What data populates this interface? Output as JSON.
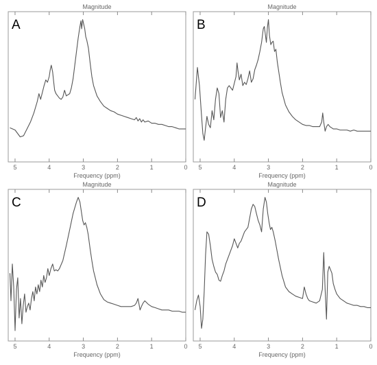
{
  "chart_data": [
    {
      "type": "line",
      "panel_label": "A",
      "title": "Magnitude",
      "xlabel": "Frequency (ppm)",
      "ylabel": "",
      "xlim": [
        5.2,
        0
      ],
      "xticks": [
        "5",
        "4",
        "3",
        "2",
        "1",
        "0"
      ],
      "xtick_values": [
        5,
        4,
        3,
        2,
        1,
        0
      ],
      "grid": false,
      "series": [
        {
          "x": [
            5.15,
            5.0,
            4.85,
            4.75,
            4.65,
            4.55,
            4.45,
            4.35,
            4.3,
            4.25,
            4.2,
            4.15,
            4.1,
            4.05,
            4.0,
            3.97,
            3.94,
            3.9,
            3.87,
            3.84,
            3.8,
            3.75,
            3.7,
            3.65,
            3.6,
            3.55,
            3.5,
            3.45,
            3.4,
            3.35,
            3.3,
            3.25,
            3.2,
            3.15,
            3.1,
            3.07,
            3.05,
            3.02,
            2.99,
            2.96,
            2.93,
            2.9,
            2.85,
            2.8,
            2.75,
            2.7,
            2.6,
            2.5,
            2.4,
            2.3,
            2.2,
            2.1,
            2.0,
            1.9,
            1.8,
            1.7,
            1.6,
            1.5,
            1.45,
            1.4,
            1.35,
            1.3,
            1.25,
            1.2,
            1.1,
            1.0,
            0.9,
            0.8,
            0.7,
            0.6,
            0.5,
            0.4,
            0.3,
            0.2,
            0.1,
            0.0
          ],
          "y": [
            0.05,
            0.03,
            -0.03,
            -0.02,
            0.04,
            0.1,
            0.18,
            0.28,
            0.35,
            0.3,
            0.36,
            0.42,
            0.47,
            0.45,
            0.5,
            0.56,
            0.6,
            0.54,
            0.46,
            0.38,
            0.35,
            0.33,
            0.31,
            0.3,
            0.32,
            0.38,
            0.33,
            0.34,
            0.35,
            0.4,
            0.48,
            0.6,
            0.72,
            0.84,
            0.94,
            0.99,
            0.92,
            1.0,
            0.96,
            0.92,
            0.85,
            0.82,
            0.75,
            0.62,
            0.5,
            0.42,
            0.33,
            0.28,
            0.24,
            0.22,
            0.2,
            0.19,
            0.17,
            0.16,
            0.15,
            0.14,
            0.13,
            0.12,
            0.14,
            0.11,
            0.13,
            0.1,
            0.12,
            0.1,
            0.11,
            0.09,
            0.09,
            0.08,
            0.08,
            0.07,
            0.06,
            0.06,
            0.05,
            0.04,
            0.04,
            0.04
          ]
        }
      ]
    },
    {
      "type": "line",
      "panel_label": "B",
      "title": "Magnitude",
      "xlabel": "Frequency (ppm)",
      "ylabel": "",
      "xlim": [
        5.2,
        0
      ],
      "xticks": [
        "5",
        "4",
        "3",
        "2",
        "1",
        "0"
      ],
      "xtick_values": [
        5,
        4,
        3,
        2,
        1,
        0
      ],
      "grid": false,
      "series": [
        {
          "x": [
            5.15,
            5.08,
            5.02,
            4.97,
            4.92,
            4.88,
            4.84,
            4.8,
            4.75,
            4.7,
            4.65,
            4.6,
            4.55,
            4.5,
            4.45,
            4.4,
            4.35,
            4.3,
            4.25,
            4.2,
            4.15,
            4.1,
            4.05,
            4.0,
            3.95,
            3.92,
            3.89,
            3.85,
            3.8,
            3.75,
            3.7,
            3.65,
            3.6,
            3.55,
            3.5,
            3.45,
            3.4,
            3.35,
            3.3,
            3.25,
            3.2,
            3.15,
            3.12,
            3.09,
            3.06,
            3.03,
            3.0,
            2.97,
            2.93,
            2.9,
            2.86,
            2.82,
            2.78,
            2.74,
            2.7,
            2.65,
            2.6,
            2.5,
            2.4,
            2.3,
            2.2,
            2.1,
            2.0,
            1.9,
            1.8,
            1.7,
            1.6,
            1.5,
            1.44,
            1.41,
            1.38,
            1.34,
            1.3,
            1.25,
            1.2,
            1.15,
            1.1,
            1.0,
            0.9,
            0.8,
            0.7,
            0.6,
            0.5,
            0.4,
            0.3,
            0.2,
            0.1,
            0.0
          ],
          "y": [
            0.3,
            0.58,
            0.42,
            0.2,
            0.0,
            -0.06,
            0.05,
            0.15,
            0.08,
            0.05,
            0.2,
            0.12,
            0.3,
            0.4,
            0.35,
            0.14,
            0.2,
            0.1,
            0.3,
            0.4,
            0.42,
            0.4,
            0.38,
            0.44,
            0.5,
            0.62,
            0.55,
            0.47,
            0.52,
            0.42,
            0.45,
            0.43,
            0.48,
            0.55,
            0.45,
            0.48,
            0.56,
            0.6,
            0.65,
            0.72,
            0.8,
            0.92,
            0.94,
            0.87,
            0.8,
            0.93,
            1.0,
            0.86,
            0.78,
            0.8,
            0.81,
            0.72,
            0.74,
            0.63,
            0.55,
            0.45,
            0.36,
            0.25,
            0.19,
            0.15,
            0.12,
            0.1,
            0.08,
            0.07,
            0.07,
            0.06,
            0.06,
            0.06,
            0.1,
            0.18,
            0.1,
            0.02,
            0.06,
            0.08,
            0.06,
            0.05,
            0.04,
            0.04,
            0.03,
            0.03,
            0.03,
            0.02,
            0.03,
            0.02,
            0.02,
            0.02,
            0.02,
            0.02
          ]
        }
      ]
    },
    {
      "type": "line",
      "panel_label": "C",
      "title": "Magnitude",
      "xlabel": "Frequency (ppm)",
      "ylabel": "",
      "xlim": [
        5.2,
        0
      ],
      "xticks": [
        "5",
        "4",
        "3",
        "2",
        "1",
        "0"
      ],
      "xtick_values": [
        5,
        4,
        3,
        2,
        1,
        0
      ],
      "grid": false,
      "series": [
        {
          "x": [
            5.15,
            5.12,
            5.08,
            5.04,
            5.0,
            4.96,
            4.92,
            4.88,
            4.84,
            4.8,
            4.76,
            4.72,
            4.68,
            4.64,
            4.6,
            4.56,
            4.52,
            4.48,
            4.44,
            4.4,
            4.36,
            4.32,
            4.28,
            4.24,
            4.2,
            4.16,
            4.12,
            4.08,
            4.04,
            4.0,
            3.95,
            3.9,
            3.85,
            3.8,
            3.75,
            3.7,
            3.6,
            3.5,
            3.4,
            3.3,
            3.2,
            3.15,
            3.1,
            3.06,
            3.02,
            2.98,
            2.94,
            2.9,
            2.86,
            2.8,
            2.75,
            2.7,
            2.65,
            2.6,
            2.5,
            2.4,
            2.3,
            2.2,
            2.1,
            2.0,
            1.9,
            1.8,
            1.7,
            1.6,
            1.5,
            1.45,
            1.4,
            1.37,
            1.34,
            1.3,
            1.25,
            1.2,
            1.1,
            1.0,
            0.9,
            0.8,
            0.7,
            0.6,
            0.5,
            0.4,
            0.3,
            0.2,
            0.1,
            0.0
          ],
          "y": [
            0.34,
            0.1,
            0.42,
            0.22,
            -0.16,
            0.2,
            0.3,
            -0.05,
            0.12,
            -0.1,
            0.06,
            0.16,
            0.0,
            0.05,
            0.08,
            0.02,
            0.12,
            0.18,
            0.1,
            0.22,
            0.16,
            0.24,
            0.18,
            0.28,
            0.22,
            0.32,
            0.26,
            0.3,
            0.38,
            0.32,
            0.38,
            0.42,
            0.36,
            0.37,
            0.36,
            0.38,
            0.45,
            0.58,
            0.72,
            0.86,
            0.96,
            1.0,
            0.96,
            0.88,
            0.8,
            0.76,
            0.78,
            0.74,
            0.68,
            0.55,
            0.45,
            0.36,
            0.3,
            0.24,
            0.16,
            0.11,
            0.09,
            0.08,
            0.07,
            0.06,
            0.05,
            0.05,
            0.05,
            0.05,
            0.06,
            0.08,
            0.12,
            0.07,
            0.02,
            0.05,
            0.08,
            0.1,
            0.07,
            0.05,
            0.04,
            0.03,
            0.02,
            0.02,
            0.02,
            0.01,
            0.01,
            0.01,
            0.0,
            0.0
          ]
        }
      ]
    },
    {
      "type": "line",
      "panel_label": "D",
      "title": "Magnitude",
      "xlabel": "Frequency (ppm)",
      "ylabel": "",
      "xlim": [
        5.2,
        0
      ],
      "xticks": [
        "5",
        "4",
        "3",
        "2",
        "1",
        "0"
      ],
      "xtick_values": [
        5,
        4,
        3,
        2,
        1,
        0
      ],
      "grid": false,
      "series": [
        {
          "x": [
            5.15,
            5.1,
            5.05,
            5.0,
            4.96,
            4.92,
            4.88,
            4.84,
            4.8,
            4.75,
            4.7,
            4.65,
            4.6,
            4.55,
            4.5,
            4.45,
            4.4,
            4.35,
            4.3,
            4.25,
            4.2,
            4.15,
            4.1,
            4.05,
            4.0,
            3.95,
            3.9,
            3.85,
            3.8,
            3.75,
            3.7,
            3.65,
            3.6,
            3.55,
            3.5,
            3.45,
            3.4,
            3.35,
            3.3,
            3.25,
            3.2,
            3.15,
            3.1,
            3.06,
            3.02,
            2.98,
            2.94,
            2.9,
            2.86,
            2.8,
            2.7,
            2.6,
            2.5,
            2.4,
            2.3,
            2.2,
            2.1,
            2.0,
            1.95,
            1.9,
            1.85,
            1.8,
            1.7,
            1.6,
            1.5,
            1.42,
            1.38,
            1.34,
            1.3,
            1.26,
            1.22,
            1.18,
            1.14,
            1.1,
            1.05,
            1.0,
            0.9,
            0.8,
            0.7,
            0.6,
            0.5,
            0.4,
            0.3,
            0.2,
            0.1,
            0.0
          ],
          "y": [
            0.02,
            0.1,
            0.15,
            0.05,
            -0.14,
            -0.06,
            0.18,
            0.5,
            0.7,
            0.68,
            0.58,
            0.46,
            0.4,
            0.35,
            0.33,
            0.28,
            0.27,
            0.32,
            0.36,
            0.42,
            0.46,
            0.5,
            0.54,
            0.58,
            0.64,
            0.6,
            0.56,
            0.6,
            0.62,
            0.66,
            0.7,
            0.72,
            0.74,
            0.82,
            0.9,
            0.94,
            0.92,
            0.86,
            0.8,
            0.76,
            0.7,
            0.9,
            1.0,
            0.96,
            0.86,
            0.78,
            0.72,
            0.74,
            0.7,
            0.62,
            0.46,
            0.32,
            0.22,
            0.18,
            0.16,
            0.14,
            0.13,
            0.12,
            0.22,
            0.16,
            0.12,
            0.1,
            0.09,
            0.08,
            0.1,
            0.2,
            0.52,
            0.2,
            -0.06,
            0.35,
            0.4,
            0.37,
            0.34,
            0.25,
            0.2,
            0.16,
            0.12,
            0.1,
            0.08,
            0.07,
            0.06,
            0.06,
            0.05,
            0.05,
            0.04,
            0.04
          ]
        }
      ]
    }
  ]
}
